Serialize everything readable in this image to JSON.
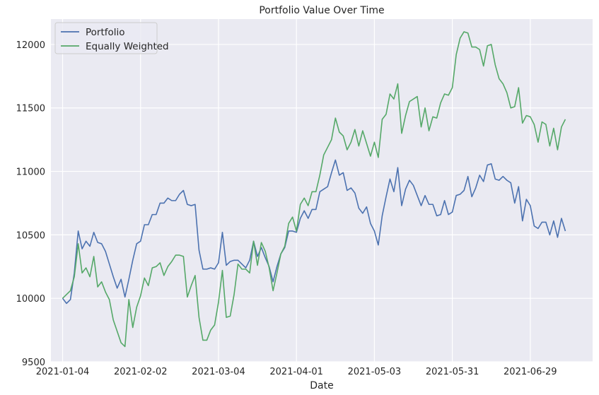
{
  "chart_data": {
    "type": "line",
    "title": "Portfolio Value Over Time",
    "xlabel": "Date",
    "ylabel": "",
    "ylim": [
      9500,
      12200
    ],
    "yticks": [
      9500,
      10000,
      10500,
      11000,
      11500,
      12000
    ],
    "xtick_labels": [
      "2021-01-04",
      "2021-02-02",
      "2021-03-04",
      "2021-04-01",
      "2021-05-03",
      "2021-05-31",
      "2021-06-29"
    ],
    "xtick_positions": [
      0,
      20,
      40,
      60,
      80,
      100,
      120
    ],
    "x_range": [
      -3,
      136
    ],
    "grid": true,
    "legend_position": "upper-left",
    "series": [
      {
        "name": "Portfolio",
        "color": "#4c72b0",
        "values": [
          10000,
          9960,
          9990,
          10200,
          10530,
          10390,
          10450,
          10410,
          10520,
          10440,
          10430,
          10370,
          10270,
          10170,
          10080,
          10150,
          10010,
          10150,
          10300,
          10430,
          10450,
          10580,
          10580,
          10660,
          10660,
          10750,
          10750,
          10790,
          10770,
          10770,
          10820,
          10850,
          10740,
          10730,
          10740,
          10380,
          10230,
          10230,
          10240,
          10230,
          10280,
          10520,
          10260,
          10290,
          10300,
          10300,
          10270,
          10240,
          10300,
          10450,
          10330,
          10400,
          10320,
          10250,
          10130,
          10250,
          10350,
          10400,
          10530,
          10530,
          10520,
          10630,
          10690,
          10630,
          10700,
          10700,
          10840,
          10860,
          10880,
          10990,
          11090,
          10970,
          10990,
          10850,
          10870,
          10830,
          10710,
          10670,
          10720,
          10590,
          10530,
          10420,
          10650,
          10800,
          10940,
          10840,
          11030,
          10730,
          10860,
          10930,
          10890,
          10810,
          10730,
          10810,
          10740,
          10740,
          10650,
          10660,
          10770,
          10660,
          10680,
          10810,
          10820,
          10850,
          10960,
          10800,
          10870,
          10970,
          10920,
          11050,
          11060,
          10940,
          10930,
          10960,
          10930,
          10910,
          10750,
          10880,
          10610,
          10780,
          10730,
          10570,
          10550,
          10600,
          10600,
          10500,
          10610,
          10480,
          10630,
          10530
        ]
      },
      {
        "name": "Equally Weighted",
        "color": "#55a868",
        "values": [
          10000,
          10030,
          10060,
          10170,
          10430,
          10200,
          10240,
          10170,
          10330,
          10090,
          10130,
          10050,
          9990,
          9830,
          9740,
          9650,
          9620,
          9990,
          9770,
          9930,
          10020,
          10160,
          10100,
          10240,
          10250,
          10280,
          10180,
          10250,
          10290,
          10340,
          10340,
          10330,
          10010,
          10100,
          10180,
          9850,
          9670,
          9670,
          9750,
          9790,
          9970,
          10220,
          9850,
          9860,
          10030,
          10270,
          10230,
          10230,
          10200,
          10450,
          10260,
          10440,
          10370,
          10240,
          10060,
          10200,
          10350,
          10410,
          10590,
          10640,
          10530,
          10740,
          10790,
          10730,
          10840,
          10840,
          10970,
          11130,
          11190,
          11250,
          11420,
          11310,
          11280,
          11170,
          11230,
          11330,
          11200,
          11320,
          11220,
          11120,
          11230,
          11110,
          11410,
          11450,
          11610,
          11570,
          11690,
          11300,
          11440,
          11550,
          11570,
          11590,
          11350,
          11500,
          11320,
          11430,
          11420,
          11540,
          11610,
          11600,
          11660,
          11920,
          12050,
          12100,
          12090,
          11980,
          11980,
          11960,
          11830,
          11990,
          12000,
          11840,
          11730,
          11690,
          11620,
          11500,
          11510,
          11660,
          11380,
          11440,
          11430,
          11370,
          11230,
          11390,
          11370,
          11200,
          11340,
          11170,
          11350,
          11410
        ]
      }
    ]
  }
}
